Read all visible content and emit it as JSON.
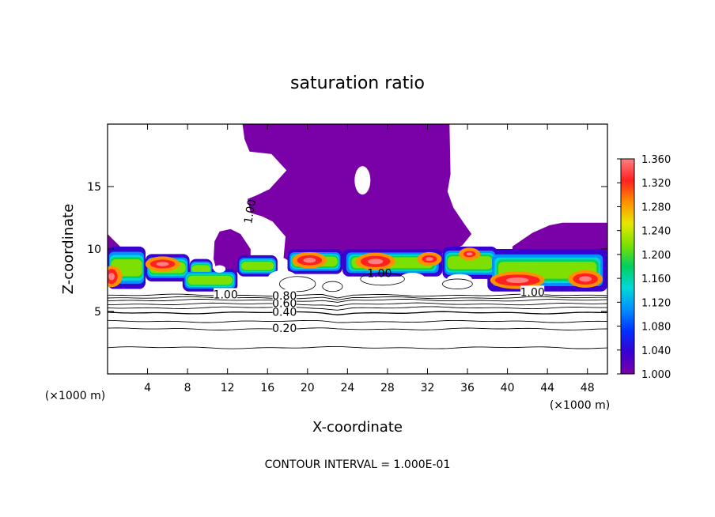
{
  "chart_data": {
    "type": "heatmap",
    "title": "saturation ratio",
    "xlabel": "X-coordinate",
    "ylabel": "Z-coordinate",
    "x_unit_left": "(×1000 m)",
    "x_unit_right": "(×1000 m)",
    "footer": "CONTOUR INTERVAL = 1.000E-01",
    "xlim": [
      0,
      50
    ],
    "ylim": [
      0,
      20
    ],
    "x_ticks": [
      4,
      8,
      12,
      16,
      20,
      24,
      28,
      32,
      36,
      40,
      44,
      48
    ],
    "y_ticks": [
      5,
      10,
      15
    ],
    "colorbar": {
      "range": [
        1.0,
        1.36
      ],
      "ticks": [
        "1.000",
        "1.040",
        "1.080",
        "1.120",
        "1.160",
        "1.200",
        "1.240",
        "1.280",
        "1.320",
        "1.360"
      ],
      "colors": [
        "#7a00a8",
        "#3a00d0",
        "#0030ff",
        "#0090ff",
        "#00d8d8",
        "#00d060",
        "#7ee000",
        "#e8e800",
        "#ff9000",
        "#ff2020",
        "#ff8080"
      ]
    },
    "cloud_color": "#7a00a8",
    "contour_labels": [
      {
        "text": "0.20",
        "x": 17.7,
        "z": 3.6
      },
      {
        "text": "0.40",
        "x": 17.7,
        "z": 4.9
      },
      {
        "text": "0.60",
        "x": 17.7,
        "z": 5.6
      },
      {
        "text": "0.80",
        "x": 17.7,
        "z": 6.2
      },
      {
        "text": "1.00",
        "x": 11.8,
        "z": 6.3
      },
      {
        "text": "1.00",
        "x": 27.2,
        "z": 8.0
      },
      {
        "text": "1.00",
        "x": 42.5,
        "z": 6.5
      },
      {
        "text": "1.00",
        "x": 14.3,
        "z": 13.0
      }
    ],
    "contour_levels_below_cloud": [
      2.1,
      3.6,
      4.2,
      4.9,
      5.3,
      5.6,
      5.9,
      6.1,
      6.3
    ]
  }
}
